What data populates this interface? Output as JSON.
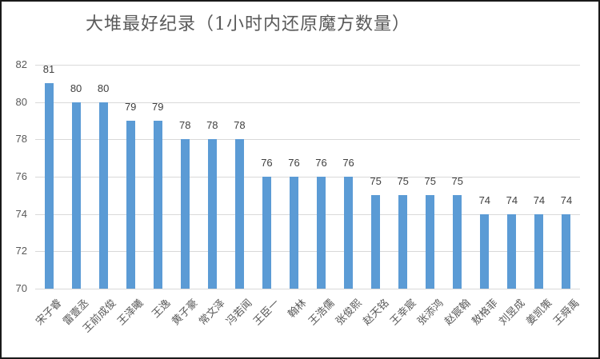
{
  "title": "大堆最好纪录（1小时内还原魔方数量）",
  "chart_data": {
    "type": "bar",
    "title": "大堆最好纪录（1小时内还原魔方数量）",
    "xlabel": "",
    "ylabel": "",
    "ylim": [
      70,
      82
    ],
    "yticks": [
      70,
      72,
      74,
      76,
      78,
      80,
      82
    ],
    "grid": true,
    "legend": null,
    "bar_color": "#5b9bd5",
    "categories": [
      "宋子睿",
      "雷壹丞",
      "王前成俊",
      "王泽曦",
      "王逸",
      "黄子豪",
      "常文泽",
      "冯若闻",
      "王臣一",
      "翰林",
      "王浩儒",
      "张俊熙",
      "赵天铭",
      "王幸宸",
      "张添鸿",
      "赵宸翰",
      "敖格菲",
      "刘昱成",
      "姜凯策",
      "王舜禹"
    ],
    "values": [
      81,
      80,
      80,
      79,
      79,
      78,
      78,
      78,
      76,
      76,
      76,
      76,
      75,
      75,
      75,
      75,
      74,
      74,
      74,
      74
    ]
  }
}
